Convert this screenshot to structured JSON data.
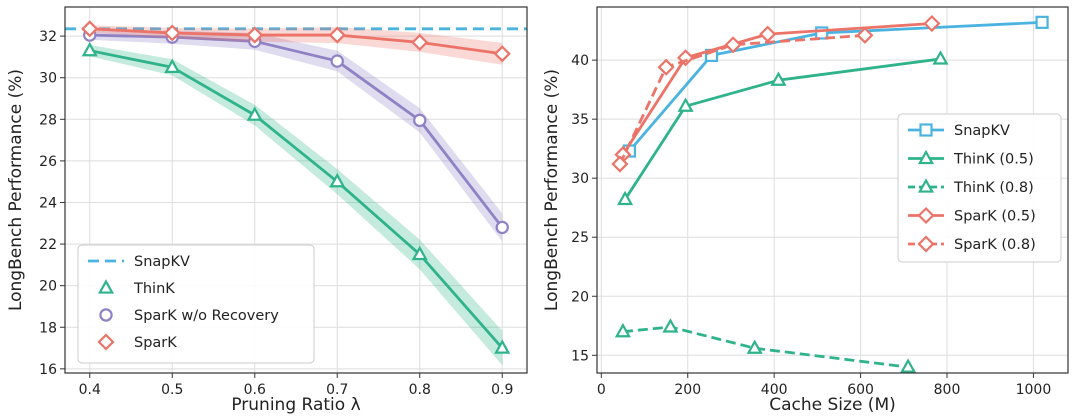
{
  "chart_data": [
    {
      "type": "line",
      "xlabel": "Pruning Ratio λ",
      "ylabel": "LongBench Performance (%)",
      "xlim": [
        0.37,
        0.93
      ],
      "ylim": [
        15.8,
        33.4
      ],
      "xticks": [
        "0.4",
        "0.5",
        "0.6",
        "0.7",
        "0.8",
        "0.9"
      ],
      "yticks": [
        "16",
        "18",
        "20",
        "22",
        "24",
        "26",
        "28",
        "30",
        "32"
      ],
      "grid": true,
      "legend_position": "lower-left",
      "series": [
        {
          "name": "SnapKV",
          "color": "#4bb3e0",
          "style": "dashed",
          "marker": "none",
          "hline": 32.35
        },
        {
          "name": "ThinK",
          "color": "#2fb38a",
          "style": "solid",
          "marker": "triangle",
          "x": [
            0.4,
            0.5,
            0.6,
            0.7,
            0.8,
            0.9
          ],
          "y": [
            31.3,
            30.5,
            28.2,
            25.0,
            21.5,
            17.0
          ],
          "band": 0.55
        },
        {
          "name": "SparK w/o Recovery",
          "color": "#8f82c4",
          "style": "solid",
          "marker": "circle",
          "x": [
            0.4,
            0.5,
            0.6,
            0.7,
            0.8,
            0.9
          ],
          "y": [
            32.05,
            31.95,
            31.75,
            30.8,
            27.95,
            22.8
          ],
          "band": 0.45
        },
        {
          "name": "SparK",
          "color": "#ec7368",
          "style": "solid",
          "marker": "diamond",
          "x": [
            0.4,
            0.5,
            0.6,
            0.7,
            0.8,
            0.9
          ],
          "y": [
            32.35,
            32.15,
            32.05,
            32.05,
            31.7,
            31.15
          ],
          "band": 0.35
        }
      ]
    },
    {
      "type": "line",
      "xlabel": "Cache Size (M)",
      "ylabel": "LongBench Performance (%)",
      "xlim": [
        -10,
        1080
      ],
      "ylim": [
        13.5,
        44.5
      ],
      "xticks": [
        "0",
        "200",
        "400",
        "600",
        "800",
        "1000"
      ],
      "yticks": [
        "15",
        "20",
        "25",
        "30",
        "35",
        "40"
      ],
      "grid": true,
      "legend_position": "center-right",
      "series": [
        {
          "name": "SnapKV",
          "color": "#4bb3e0",
          "style": "solid",
          "marker": "square",
          "x": [
            65,
            255,
            510,
            1020
          ],
          "y": [
            32.3,
            40.4,
            42.3,
            43.2
          ]
        },
        {
          "name": "ThinK (0.5)",
          "color": "#2fb38a",
          "style": "solid",
          "marker": "triangle",
          "x": [
            55,
            195,
            410,
            785
          ],
          "y": [
            28.2,
            36.1,
            38.3,
            40.1
          ]
        },
        {
          "name": "ThinK (0.8)",
          "color": "#2fb38a",
          "style": "dashed",
          "marker": "triangle",
          "x": [
            50,
            160,
            355,
            710
          ],
          "y": [
            17.0,
            17.4,
            15.6,
            14.0
          ]
        },
        {
          "name": "SparK (0.5)",
          "color": "#ec7368",
          "style": "solid",
          "marker": "diamond",
          "x": [
            50,
            195,
            385,
            765
          ],
          "y": [
            32.0,
            40.2,
            42.2,
            43.1
          ]
        },
        {
          "name": "SparK (0.8)",
          "color": "#ec7368",
          "style": "dashed",
          "marker": "diamond",
          "x": [
            43,
            150,
            305,
            610
          ],
          "y": [
            31.2,
            39.4,
            41.3,
            42.1
          ]
        }
      ]
    }
  ]
}
